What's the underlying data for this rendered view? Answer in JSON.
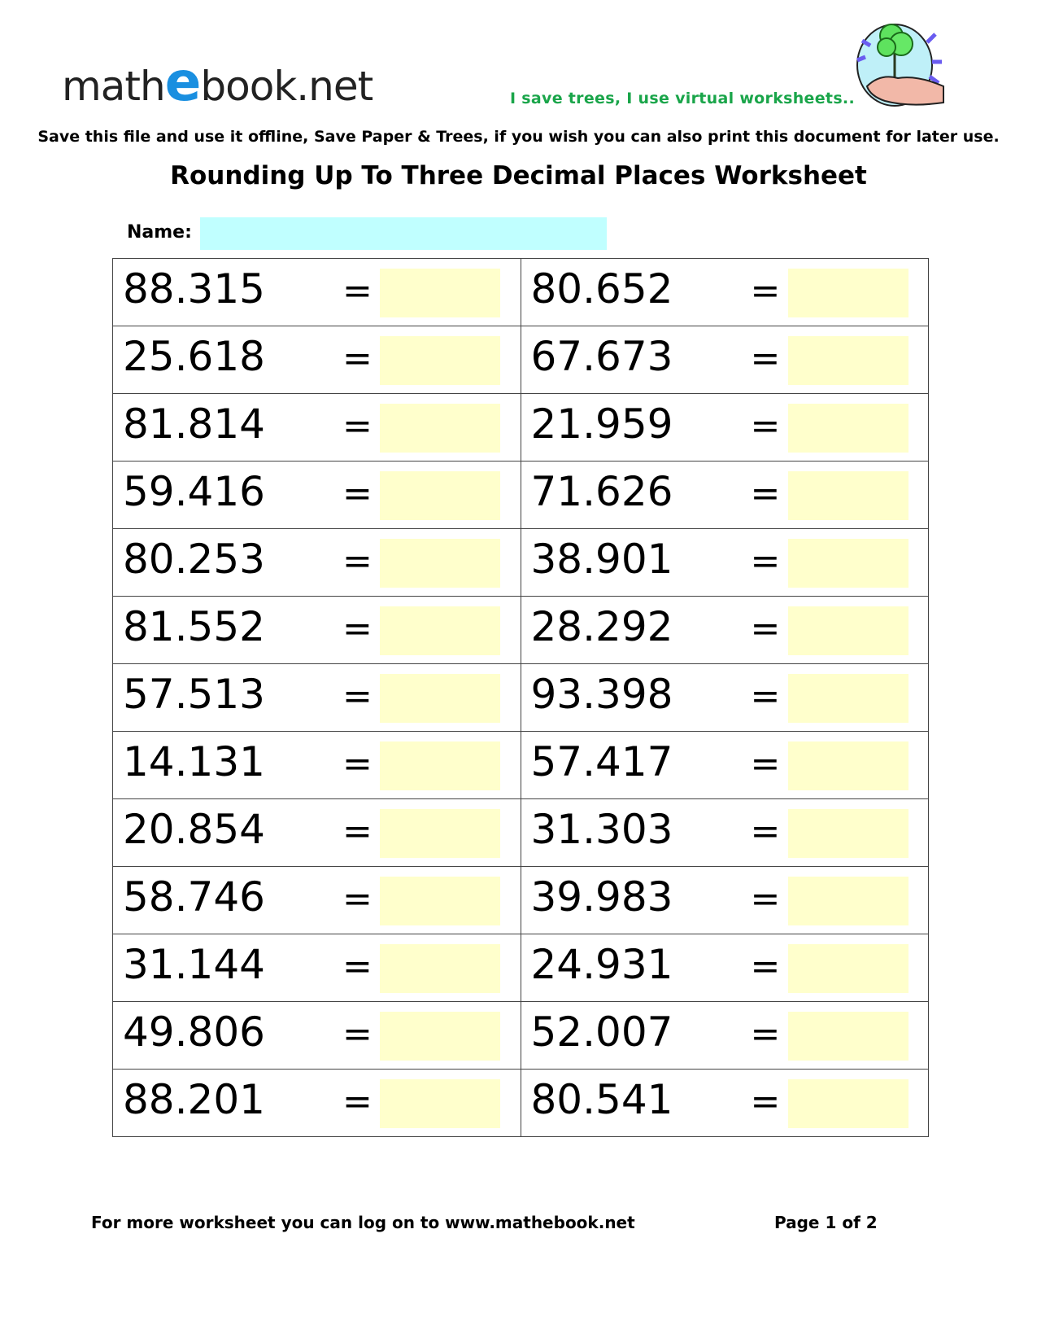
{
  "header": {
    "logo_text": "mathebook.net",
    "logo_prefix": "math",
    "logo_e": "e",
    "logo_suffix": "book.net",
    "tagline": "I save trees, I use virtual worksheets..",
    "notice": "Save this file and use it offline, Save Paper & Trees, if you wish you can also print this document for later use.",
    "title": "Rounding Up To Three Decimal Places Worksheet",
    "tree_icon": "tree-in-hand-icon"
  },
  "name_field": {
    "label": "Name:",
    "value": ""
  },
  "colors": {
    "name_box": "#c0ffff",
    "answer_box": "#ffffcc",
    "tagline": "#1aa54a",
    "logo_e": "#1a8fe0"
  },
  "equals": "=",
  "problems": [
    [
      "88.315",
      "80.652"
    ],
    [
      "25.618",
      "67.673"
    ],
    [
      "81.814",
      "21.959"
    ],
    [
      "59.416",
      "71.626"
    ],
    [
      "80.253",
      "38.901"
    ],
    [
      "81.552",
      "28.292"
    ],
    [
      "57.513",
      "93.398"
    ],
    [
      "14.131",
      "57.417"
    ],
    [
      "20.854",
      "31.303"
    ],
    [
      "58.746",
      "39.983"
    ],
    [
      "31.144",
      "24.931"
    ],
    [
      "49.806",
      "52.007"
    ],
    [
      "88.201",
      "80.541"
    ]
  ],
  "footer": {
    "link_text": "For more worksheet you can log on to www.mathebook.net",
    "page": "Page 1 of 2"
  }
}
